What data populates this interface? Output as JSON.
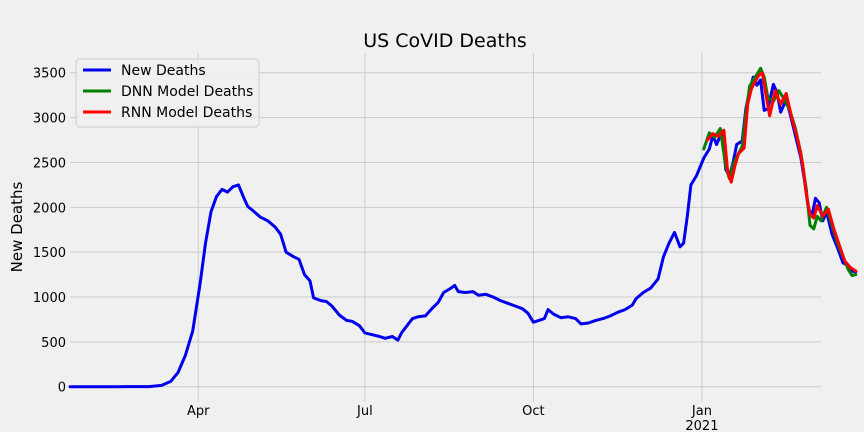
{
  "chart_data": {
    "type": "line",
    "title": "US CoVID Deaths",
    "xlabel": "",
    "ylabel": "New Deaths",
    "xlim": [
      "2020-01-22",
      "2021-03-07"
    ],
    "ylim": [
      -170,
      3720
    ],
    "y_ticks": [
      0,
      500,
      1000,
      1500,
      2000,
      2500,
      3000,
      3500
    ],
    "x_ticks": [
      {
        "date": "2020-04-01",
        "label": "Apr",
        "sublabel": ""
      },
      {
        "date": "2020-07-01",
        "label": "Jul",
        "sublabel": ""
      },
      {
        "date": "2020-10-01",
        "label": "Oct",
        "sublabel": ""
      },
      {
        "date": "2021-01-01",
        "label": "Jan",
        "sublabel": "2021"
      }
    ],
    "grid": true,
    "legend_position": "top-left",
    "series": [
      {
        "name": "New Deaths",
        "color": "#0000ee",
        "points": [
          [
            "2020-01-22",
            0
          ],
          [
            "2020-02-15",
            0
          ],
          [
            "2020-03-05",
            2
          ],
          [
            "2020-03-12",
            15
          ],
          [
            "2020-03-17",
            60
          ],
          [
            "2020-03-21",
            160
          ],
          [
            "2020-03-25",
            350
          ],
          [
            "2020-03-29",
            620
          ],
          [
            "2020-04-02",
            1150
          ],
          [
            "2020-04-05",
            1600
          ],
          [
            "2020-04-08",
            1950
          ],
          [
            "2020-04-11",
            2120
          ],
          [
            "2020-04-14",
            2200
          ],
          [
            "2020-04-17",
            2170
          ],
          [
            "2020-04-20",
            2230
          ],
          [
            "2020-04-23",
            2250
          ],
          [
            "2020-04-26",
            2100
          ],
          [
            "2020-04-28",
            2010
          ],
          [
            "2020-05-01",
            1960
          ],
          [
            "2020-05-05",
            1890
          ],
          [
            "2020-05-09",
            1850
          ],
          [
            "2020-05-13",
            1780
          ],
          [
            "2020-05-16",
            1700
          ],
          [
            "2020-05-19",
            1500
          ],
          [
            "2020-05-23",
            1450
          ],
          [
            "2020-05-26",
            1420
          ],
          [
            "2020-05-29",
            1250
          ],
          [
            "2020-06-01",
            1180
          ],
          [
            "2020-06-03",
            990
          ],
          [
            "2020-06-07",
            960
          ],
          [
            "2020-06-10",
            950
          ],
          [
            "2020-06-13",
            900
          ],
          [
            "2020-06-17",
            800
          ],
          [
            "2020-06-21",
            740
          ],
          [
            "2020-06-24",
            730
          ],
          [
            "2020-06-28",
            680
          ],
          [
            "2020-07-01",
            600
          ],
          [
            "2020-07-05",
            580
          ],
          [
            "2020-07-09",
            560
          ],
          [
            "2020-07-12",
            540
          ],
          [
            "2020-07-16",
            560
          ],
          [
            "2020-07-19",
            520
          ],
          [
            "2020-07-21",
            600
          ],
          [
            "2020-07-24",
            680
          ],
          [
            "2020-07-27",
            760
          ],
          [
            "2020-07-30",
            780
          ],
          [
            "2020-08-03",
            790
          ],
          [
            "2020-08-07",
            880
          ],
          [
            "2020-08-10",
            940
          ],
          [
            "2020-08-13",
            1050
          ],
          [
            "2020-08-17",
            1100
          ],
          [
            "2020-08-19",
            1130
          ],
          [
            "2020-08-21",
            1060
          ],
          [
            "2020-08-25",
            1050
          ],
          [
            "2020-08-29",
            1060
          ],
          [
            "2020-09-01",
            1020
          ],
          [
            "2020-09-05",
            1030
          ],
          [
            "2020-09-09",
            1000
          ],
          [
            "2020-09-13",
            960
          ],
          [
            "2020-09-17",
            930
          ],
          [
            "2020-09-21",
            900
          ],
          [
            "2020-09-25",
            870
          ],
          [
            "2020-09-28",
            820
          ],
          [
            "2020-10-01",
            720
          ],
          [
            "2020-10-04",
            740
          ],
          [
            "2020-10-07",
            760
          ],
          [
            "2020-10-09",
            860
          ],
          [
            "2020-10-12",
            810
          ],
          [
            "2020-10-16",
            770
          ],
          [
            "2020-10-20",
            780
          ],
          [
            "2020-10-24",
            760
          ],
          [
            "2020-10-27",
            700
          ],
          [
            "2020-10-31",
            710
          ],
          [
            "2020-11-04",
            740
          ],
          [
            "2020-11-08",
            760
          ],
          [
            "2020-11-12",
            790
          ],
          [
            "2020-11-16",
            830
          ],
          [
            "2020-11-20",
            860
          ],
          [
            "2020-11-24",
            910
          ],
          [
            "2020-11-26",
            980
          ],
          [
            "2020-11-30",
            1050
          ],
          [
            "2020-12-04",
            1100
          ],
          [
            "2020-12-08",
            1200
          ],
          [
            "2020-12-11",
            1450
          ],
          [
            "2020-12-14",
            1600
          ],
          [
            "2020-12-17",
            1720
          ],
          [
            "2020-12-20",
            1560
          ],
          [
            "2020-12-22",
            1600
          ],
          [
            "2020-12-24",
            1900
          ],
          [
            "2020-12-26",
            2250
          ],
          [
            "2020-12-29",
            2350
          ],
          [
            "2021-01-02",
            2550
          ],
          [
            "2021-01-05",
            2650
          ],
          [
            "2021-01-07",
            2800
          ],
          [
            "2021-01-09",
            2700
          ],
          [
            "2021-01-12",
            2850
          ],
          [
            "2021-01-14",
            2420
          ],
          [
            "2021-01-16",
            2350
          ],
          [
            "2021-01-18",
            2500
          ],
          [
            "2021-01-20",
            2700
          ],
          [
            "2021-01-23",
            2740
          ],
          [
            "2021-01-25",
            3100
          ],
          [
            "2021-01-27",
            3300
          ],
          [
            "2021-01-29",
            3450
          ],
          [
            "2021-01-31",
            3360
          ],
          [
            "2021-02-02",
            3420
          ],
          [
            "2021-02-04",
            3080
          ],
          [
            "2021-02-06",
            3100
          ],
          [
            "2021-02-09",
            3370
          ],
          [
            "2021-02-11",
            3280
          ],
          [
            "2021-02-13",
            3060
          ],
          [
            "2021-02-16",
            3200
          ],
          [
            "2021-02-18",
            3050
          ],
          [
            "2021-02-21",
            2800
          ],
          [
            "2021-02-24",
            2550
          ],
          [
            "2021-02-26",
            2300
          ],
          [
            "2021-02-28",
            2000
          ],
          [
            "2021-03-02",
            1900
          ],
          [
            "2021-03-04",
            2100
          ],
          [
            "2021-03-06",
            2050
          ],
          [
            "2021-03-08",
            1850
          ],
          [
            "2021-03-10",
            1950
          ],
          [
            "2021-03-13",
            1700
          ],
          [
            "2021-03-16",
            1550
          ],
          [
            "2021-03-19",
            1380
          ],
          [
            "2021-03-22",
            1350
          ],
          [
            "2021-03-24",
            1290
          ],
          [
            "2021-03-26",
            1280
          ]
        ]
      },
      {
        "name": "DNN Model Deaths",
        "color": "#008000",
        "points": [
          [
            "2021-01-02",
            2650
          ],
          [
            "2021-01-05",
            2830
          ],
          [
            "2021-01-08",
            2780
          ],
          [
            "2021-01-11",
            2880
          ],
          [
            "2021-01-14",
            2450
          ],
          [
            "2021-01-16",
            2320
          ],
          [
            "2021-01-18",
            2480
          ],
          [
            "2021-01-20",
            2560
          ],
          [
            "2021-01-23",
            2680
          ],
          [
            "2021-01-25",
            3050
          ],
          [
            "2021-01-27",
            3350
          ],
          [
            "2021-01-29",
            3420
          ],
          [
            "2021-01-31",
            3480
          ],
          [
            "2021-02-02",
            3550
          ],
          [
            "2021-02-04",
            3450
          ],
          [
            "2021-02-06",
            3220
          ],
          [
            "2021-02-09",
            3180
          ],
          [
            "2021-02-12",
            3300
          ],
          [
            "2021-02-15",
            3200
          ],
          [
            "2021-02-18",
            3080
          ],
          [
            "2021-02-21",
            2880
          ],
          [
            "2021-02-24",
            2600
          ],
          [
            "2021-02-27",
            2200
          ],
          [
            "2021-03-01",
            1800
          ],
          [
            "2021-03-03",
            1760
          ],
          [
            "2021-03-05",
            1900
          ],
          [
            "2021-03-07",
            1850
          ],
          [
            "2021-03-10",
            2000
          ],
          [
            "2021-03-13",
            1800
          ],
          [
            "2021-03-16",
            1600
          ],
          [
            "2021-03-19",
            1450
          ],
          [
            "2021-03-22",
            1300
          ],
          [
            "2021-03-24",
            1240
          ],
          [
            "2021-03-26",
            1250
          ]
        ]
      },
      {
        "name": "RNN Model Deaths",
        "color": "#ff0000",
        "points": [
          [
            "2021-01-04",
            2750
          ],
          [
            "2021-01-07",
            2820
          ],
          [
            "2021-01-10",
            2790
          ],
          [
            "2021-01-13",
            2860
          ],
          [
            "2021-01-15",
            2400
          ],
          [
            "2021-01-17",
            2280
          ],
          [
            "2021-01-19",
            2460
          ],
          [
            "2021-01-21",
            2600
          ],
          [
            "2021-01-24",
            2660
          ],
          [
            "2021-01-26",
            3150
          ],
          [
            "2021-01-28",
            3320
          ],
          [
            "2021-01-30",
            3400
          ],
          [
            "2021-02-01",
            3470
          ],
          [
            "2021-02-03",
            3500
          ],
          [
            "2021-02-05",
            3250
          ],
          [
            "2021-02-07",
            3020
          ],
          [
            "2021-02-10",
            3300
          ],
          [
            "2021-02-13",
            3150
          ],
          [
            "2021-02-16",
            3270
          ],
          [
            "2021-02-19",
            3000
          ],
          [
            "2021-02-22",
            2780
          ],
          [
            "2021-02-25",
            2480
          ],
          [
            "2021-02-27",
            2150
          ],
          [
            "2021-03-01",
            1920
          ],
          [
            "2021-03-03",
            1880
          ],
          [
            "2021-03-05",
            2020
          ],
          [
            "2021-03-08",
            1900
          ],
          [
            "2021-03-11",
            1980
          ],
          [
            "2021-03-14",
            1760
          ],
          [
            "2021-03-17",
            1580
          ],
          [
            "2021-03-20",
            1400
          ],
          [
            "2021-03-23",
            1330
          ],
          [
            "2021-03-26",
            1290
          ]
        ]
      }
    ]
  }
}
